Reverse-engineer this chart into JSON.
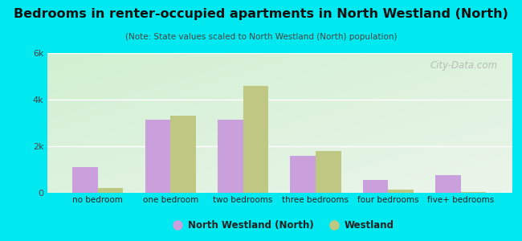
{
  "title": "Bedrooms in renter-occupied apartments in North Westland (North)",
  "subtitle": "(Note: State values scaled to North Westland (North) population)",
  "categories": [
    "no bedroom",
    "one bedroom",
    "two bedrooms",
    "three bedrooms",
    "four bedrooms",
    "five+ bedrooms"
  ],
  "north_westland_values": [
    1100,
    3150,
    3150,
    1600,
    550,
    750
  ],
  "westland_values": [
    200,
    3300,
    4600,
    1800,
    130,
    30
  ],
  "color_north": "#c9a0dc",
  "color_westland": "#bec882",
  "ylim": [
    0,
    6000
  ],
  "yticks": [
    0,
    2000,
    4000,
    6000
  ],
  "ytick_labels": [
    "0",
    "2k",
    "4k",
    "6k"
  ],
  "legend_north": "North Westland (North)",
  "legend_westland": "Westland",
  "bg_outer": "#00e8f0",
  "watermark": "City-Data.com",
  "bar_width": 0.35
}
